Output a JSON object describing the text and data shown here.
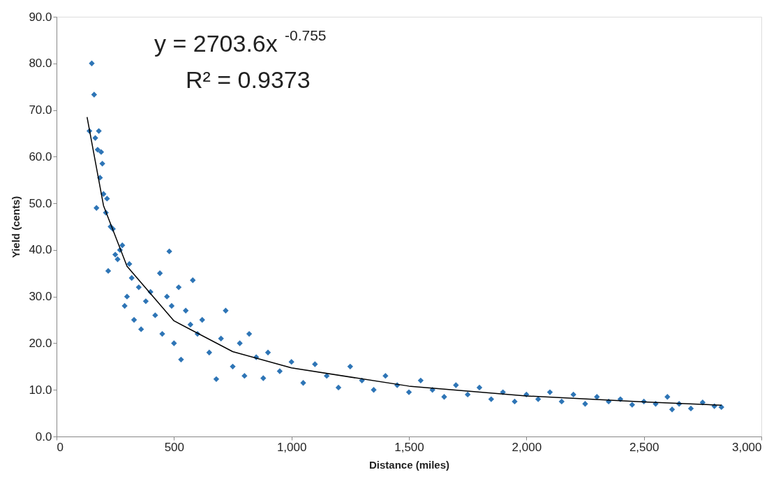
{
  "chart_data": {
    "type": "scatter",
    "xlabel": "Distance (miles)",
    "ylabel": "Yield (cents)",
    "annotations": [
      "y = 2703.6x$^{-0.755}$",
      "R² = 0.9373"
    ],
    "xlim": [
      0,
      3000
    ],
    "ylim": [
      0,
      90
    ],
    "xticks": [
      0,
      500,
      {
        "value": 1000,
        "label": "1,000"
      },
      {
        "value": 1500,
        "label": "1,500"
      },
      {
        "value": 2000,
        "label": "2,000"
      },
      {
        "value": 2500,
        "label": "2,500"
      },
      {
        "value": 3000,
        "label": "3,000"
      }
    ],
    "yticks": [
      {
        "value": 0,
        "label": "0.0"
      },
      {
        "value": 10,
        "label": "10.0"
      },
      {
        "value": 20,
        "label": "20.0"
      },
      {
        "value": 30,
        "label": "30.0"
      },
      {
        "value": 40,
        "label": "40.0"
      },
      {
        "value": 50,
        "label": "50.0"
      },
      {
        "value": 60,
        "label": "60.0"
      },
      {
        "value": 70,
        "label": "70.0"
      },
      {
        "value": 80,
        "label": "80.0"
      },
      {
        "value": 90,
        "label": "90.0"
      }
    ],
    "series": [
      {
        "marker": "diamond",
        "color": "#2e75b6",
        "x": [
          150,
          160,
          140,
          165,
          180,
          175,
          190,
          185,
          195,
          200,
          170,
          210,
          215,
          230,
          240,
          220,
          250,
          260,
          270,
          280,
          290,
          300,
          310,
          320,
          330,
          350,
          360,
          380,
          400,
          420,
          440,
          450,
          470,
          480,
          490,
          500,
          520,
          530,
          550,
          570,
          580,
          600,
          620,
          650,
          680,
          700,
          720,
          750,
          780,
          800,
          820,
          850,
          880,
          900,
          950,
          1000,
          1050,
          1100,
          1150,
          1200,
          1250,
          1300,
          1350,
          1400,
          1450,
          1500,
          1550,
          1600,
          1650,
          1700,
          1750,
          1800,
          1850,
          1900,
          1950,
          2000,
          2050,
          2100,
          2150,
          2200,
          2250,
          2300,
          2350,
          2400,
          2450,
          2500,
          2550,
          2600,
          2620,
          2650,
          2700,
          2750,
          2800,
          2830
        ],
        "values": [
          80,
          73.3,
          65.5,
          64,
          65.5,
          61.5,
          61,
          55.5,
          58.5,
          52,
          49,
          48,
          51,
          45,
          44.5,
          35.5,
          39,
          38,
          40,
          41,
          28,
          30,
          37,
          34,
          25,
          32,
          23,
          29,
          31,
          26,
          35,
          22,
          30,
          39.7,
          28,
          20,
          32,
          16.5,
          27,
          24,
          33.5,
          22,
          25,
          18,
          12.3,
          21,
          27,
          15,
          20,
          13,
          22,
          17,
          12.5,
          18,
          14,
          16,
          11.5,
          15.5,
          13,
          10.5,
          15,
          12,
          10,
          13,
          11,
          9.5,
          12,
          10,
          8.5,
          11,
          9,
          10.5,
          8,
          9.5,
          7.5,
          9,
          8,
          9.5,
          7.5,
          9,
          7,
          8.5,
          7.5,
          8,
          6.8,
          7.5,
          7,
          8.5,
          5.8,
          7,
          6,
          7.3,
          6.5,
          6.3
        ]
      },
      {
        "type": "line",
        "marker": "none",
        "color": "#000000",
        "x": [
          130,
          200,
          300,
          500,
          750,
          1000,
          1500,
          2000,
          2500,
          2830
        ],
        "values": [
          68.5,
          49.5,
          36.5,
          24.8,
          18.2,
          14.7,
          10.8,
          8.7,
          7.4,
          6.7
        ]
      }
    ]
  }
}
